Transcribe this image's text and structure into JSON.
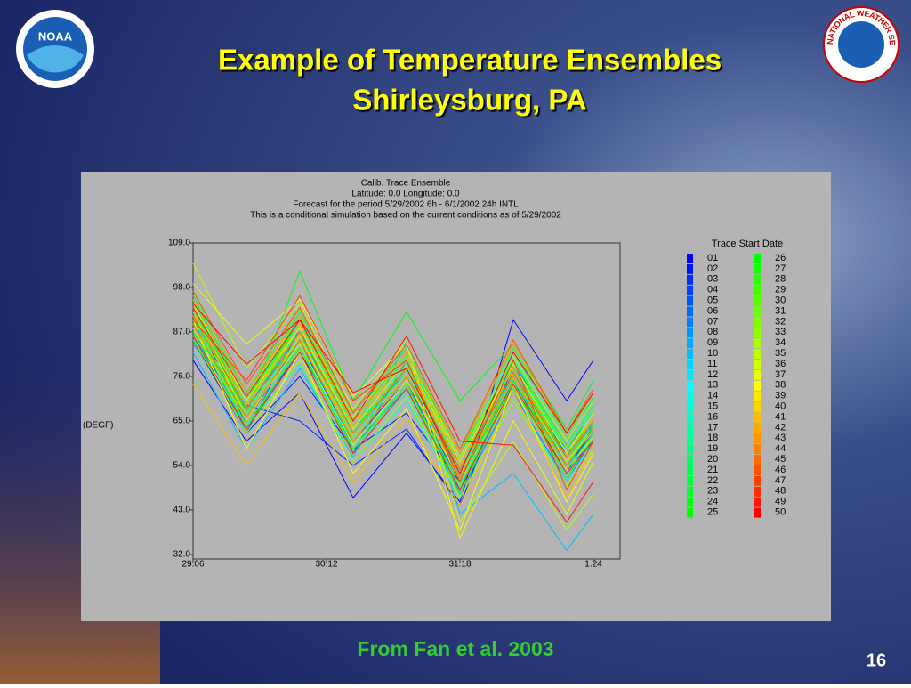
{
  "slide": {
    "title_lines": [
      "Example of Temperature Ensembles",
      "Shirleysburg, PA"
    ],
    "source": "From Fan et al. 2003",
    "page_number": "16",
    "left_logo_text": "NOAA",
    "right_logo_text": "NATIONAL WEATHER SERVICE"
  },
  "chart_data": {
    "type": "line",
    "title": "Calib. Trace Ensemble",
    "subtitle_lines": [
      "Latitude: 0.0    Longitude:  0.0",
      "Forecast for the period 5/29/2002 6h - 6/1/2002 24h INTL",
      "This is a conditional simulation based on the current conditions as of 5/29/2002"
    ],
    "y_label": "(DEGF)",
    "legend_title": "Trace Start Date",
    "x": [
      0,
      12,
      24,
      36,
      48,
      60,
      72,
      84,
      90
    ],
    "xlim": [
      0,
      96
    ],
    "xticks": [
      {
        "value": 0,
        "label": "29.06"
      },
      {
        "value": 30,
        "label": "30.12"
      },
      {
        "value": 60,
        "label": "31.18"
      },
      {
        "value": 90,
        "label": "1.24"
      }
    ],
    "ylim": [
      32,
      109
    ],
    "yticks": [
      {
        "value": 32,
        "label": "32.0"
      },
      {
        "value": 43,
        "label": "43.0"
      },
      {
        "value": 54,
        "label": "54.0"
      },
      {
        "value": 65,
        "label": "65.0"
      },
      {
        "value": 76,
        "label": "76.0"
      },
      {
        "value": 87,
        "label": "87.0"
      },
      {
        "value": 98,
        "label": "98.0"
      },
      {
        "value": 109,
        "label": "109.0"
      }
    ],
    "series": [
      {
        "name": "01",
        "color": "#0000ff",
        "values": [
          80,
          60,
          72,
          46,
          62,
          45,
          90,
          70,
          80
        ]
      },
      {
        "name": "02",
        "color": "#0015ff",
        "values": [
          85,
          62,
          76,
          58,
          67,
          50,
          73,
          57,
          64
        ]
      },
      {
        "name": "03",
        "color": "#002aff",
        "values": [
          87,
          69,
          65,
          54,
          63,
          44,
          79,
          53,
          60
        ]
      },
      {
        "name": "04",
        "color": "#0040ff",
        "values": [
          92,
          64,
          82,
          60,
          75,
          48,
          75,
          52,
          64
        ]
      },
      {
        "name": "05",
        "color": "#0055ff",
        "values": [
          88,
          65,
          85,
          58,
          74,
          50,
          77,
          54,
          62
        ]
      },
      {
        "name": "06",
        "color": "#006aff",
        "values": [
          86,
          66,
          84,
          60,
          76,
          52,
          80,
          56,
          66
        ]
      },
      {
        "name": "07",
        "color": "#0080ff",
        "values": [
          90,
          62,
          88,
          57,
          80,
          47,
          72,
          50,
          61
        ]
      },
      {
        "name": "08",
        "color": "#0095ff",
        "values": [
          84,
          68,
          86,
          63,
          77,
          51,
          74,
          58,
          67
        ]
      },
      {
        "name": "09",
        "color": "#00aaff",
        "values": [
          89,
          63,
          83,
          59,
          73,
          55,
          78,
          55,
          63
        ]
      },
      {
        "name": "10",
        "color": "#00bfff",
        "values": [
          82,
          58,
          78,
          56,
          85,
          42,
          52,
          33,
          42
        ]
      },
      {
        "name": "11",
        "color": "#00d5ff",
        "values": [
          91,
          67,
          86,
          61,
          78,
          52,
          79,
          53,
          65
        ]
      },
      {
        "name": "12",
        "color": "#00eaff",
        "values": [
          93,
          66,
          90,
          62,
          81,
          54,
          76,
          56,
          68
        ]
      },
      {
        "name": "13",
        "color": "#00ffff",
        "values": [
          87,
          70,
          88,
          64,
          79,
          50,
          73,
          52,
          62
        ]
      },
      {
        "name": "14",
        "color": "#00ffea",
        "values": [
          95,
          68,
          84,
          58,
          72,
          49,
          81,
          57,
          66
        ]
      },
      {
        "name": "15",
        "color": "#00ffd5",
        "values": [
          86,
          64,
          79,
          55,
          70,
          46,
          70,
          50,
          60
        ]
      },
      {
        "name": "16",
        "color": "#00ffbf",
        "values": [
          92,
          71,
          89,
          65,
          82,
          56,
          82,
          60,
          70
        ]
      },
      {
        "name": "17",
        "color": "#00ffaa",
        "values": [
          90,
          69,
          91,
          63,
          80,
          53,
          77,
          55,
          64
        ]
      },
      {
        "name": "18",
        "color": "#00ff95",
        "values": [
          88,
          66,
          85,
          60,
          76,
          51,
          75,
          54,
          63
        ]
      },
      {
        "name": "19",
        "color": "#00ff80",
        "values": [
          94,
          72,
          87,
          59,
          74,
          48,
          79,
          58,
          69
        ]
      },
      {
        "name": "20",
        "color": "#00ff6a",
        "values": [
          89,
          65,
          86,
          61,
          77,
          52,
          76,
          56,
          65
        ]
      },
      {
        "name": "21",
        "color": "#00ff55",
        "values": [
          91,
          68,
          88,
          62,
          79,
          54,
          78,
          57,
          67
        ]
      },
      {
        "name": "22",
        "color": "#00ff40",
        "values": [
          96,
          70,
          92,
          66,
          83,
          57,
          80,
          59,
          71
        ]
      },
      {
        "name": "23",
        "color": "#00ff2a",
        "values": [
          85,
          63,
          84,
          57,
          73,
          47,
          74,
          51,
          61
        ]
      },
      {
        "name": "24",
        "color": "#00ff15",
        "values": [
          92,
          67,
          102,
          70,
          92,
          70,
          84,
          63,
          75
        ]
      },
      {
        "name": "25",
        "color": "#00ff00",
        "values": [
          93,
          69,
          90,
          64,
          80,
          55,
          78,
          56,
          66
        ]
      },
      {
        "name": "26",
        "color": "#00ff00",
        "values": [
          87,
          66,
          85,
          60,
          76,
          50,
          75,
          53,
          62
        ]
      },
      {
        "name": "27",
        "color": "#15ff00",
        "values": [
          90,
          68,
          87,
          63,
          78,
          53,
          77,
          55,
          65
        ]
      },
      {
        "name": "28",
        "color": "#2aff00",
        "values": [
          97,
          72,
          93,
          67,
          84,
          58,
          83,
          61,
          72
        ]
      },
      {
        "name": "29",
        "color": "#40ff00",
        "values": [
          88,
          64,
          83,
          58,
          74,
          49,
          73,
          52,
          60
        ]
      },
      {
        "name": "30",
        "color": "#55ff00",
        "values": [
          94,
          70,
          89,
          65,
          81,
          56,
          80,
          58,
          68
        ]
      },
      {
        "name": "31",
        "color": "#6aff00",
        "values": [
          89,
          67,
          86,
          61,
          77,
          52,
          76,
          54,
          64
        ]
      },
      {
        "name": "32",
        "color": "#80ff00",
        "values": [
          91,
          69,
          88,
          62,
          79,
          54,
          79,
          57,
          66
        ]
      },
      {
        "name": "33",
        "color": "#95ff00",
        "values": [
          86,
          62,
          80,
          55,
          71,
          46,
          70,
          49,
          58
        ]
      },
      {
        "name": "34",
        "color": "#aaff00",
        "values": [
          93,
          71,
          91,
          66,
          82,
          56,
          81,
          60,
          70
        ]
      },
      {
        "name": "35",
        "color": "#bfff00",
        "values": [
          104,
          78,
          94,
          68,
          85,
          40,
          60,
          38,
          47
        ]
      },
      {
        "name": "36",
        "color": "#d5ff00",
        "values": [
          92,
          66,
          84,
          59,
          75,
          51,
          76,
          55,
          63
        ]
      },
      {
        "name": "37",
        "color": "#eaff00",
        "values": [
          99,
          84,
          95,
          71,
          84,
          36,
          65,
          42,
          55
        ]
      },
      {
        "name": "38",
        "color": "#ffff00",
        "values": [
          90,
          58,
          82,
          52,
          68,
          38,
          74,
          45,
          57
        ]
      },
      {
        "name": "39",
        "color": "#ffea00",
        "values": [
          94,
          70,
          88,
          63,
          80,
          55,
          79,
          57,
          67
        ]
      },
      {
        "name": "40",
        "color": "#ffd500",
        "values": [
          88,
          65,
          86,
          60,
          76,
          50,
          74,
          53,
          61
        ]
      },
      {
        "name": "41",
        "color": "#ffbf00",
        "values": [
          74,
          54,
          72,
          50,
          66,
          44,
          72,
          46,
          58
        ]
      },
      {
        "name": "42",
        "color": "#ffaa00",
        "values": [
          92,
          69,
          89,
          64,
          80,
          54,
          78,
          56,
          66
        ]
      },
      {
        "name": "43",
        "color": "#ff9500",
        "values": [
          95,
          72,
          91,
          65,
          82,
          57,
          84,
          62,
          72
        ]
      },
      {
        "name": "44",
        "color": "#ff8000",
        "values": [
          89,
          66,
          85,
          60,
          76,
          51,
          76,
          54,
          63
        ]
      },
      {
        "name": "45",
        "color": "#ff6a00",
        "values": [
          91,
          68,
          87,
          62,
          78,
          53,
          77,
          56,
          65
        ]
      },
      {
        "name": "46",
        "color": "#ff5500",
        "values": [
          97,
          74,
          93,
          67,
          84,
          58,
          85,
          62,
          73
        ]
      },
      {
        "name": "47",
        "color": "#ff4000",
        "values": [
          90,
          75,
          96,
          70,
          80,
          50,
          80,
          48,
          60
        ]
      },
      {
        "name": "48",
        "color": "#ff2a00",
        "values": [
          86,
          63,
          82,
          57,
          73,
          48,
          74,
          52,
          60
        ]
      },
      {
        "name": "49",
        "color": "#ff1500",
        "values": [
          93,
          71,
          90,
          65,
          86,
          60,
          59,
          40,
          50
        ]
      },
      {
        "name": "50",
        "color": "#ff0000",
        "values": [
          94,
          79,
          90,
          72,
          78,
          52,
          82,
          62,
          72
        ]
      }
    ]
  }
}
